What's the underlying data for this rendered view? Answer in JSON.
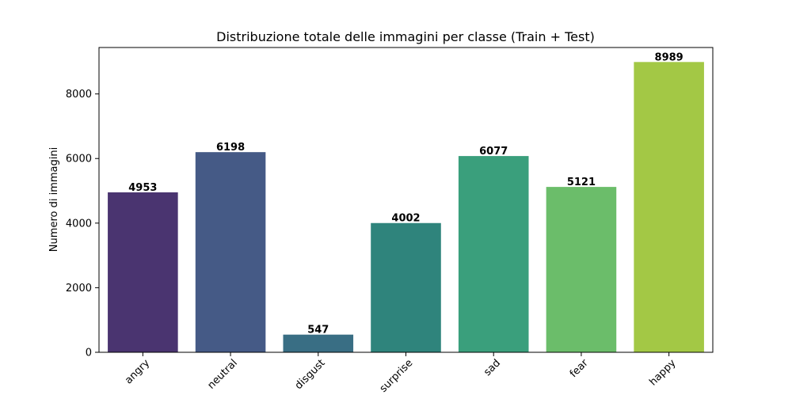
{
  "chart_data": {
    "type": "bar",
    "title": "Distribuzione totale delle immagini per classe (Train + Test)",
    "xlabel": "",
    "ylabel": "Numero di immagini",
    "categories": [
      "angry",
      "neutral",
      "disgust",
      "surprise",
      "sad",
      "fear",
      "happy"
    ],
    "values": [
      4953,
      6198,
      547,
      4002,
      6077,
      5121,
      8989
    ],
    "value_labels": [
      "4953",
      "6198",
      "547",
      "4002",
      "6077",
      "5121",
      "8989"
    ],
    "colors": [
      "#4a3470",
      "#455a86",
      "#396e84",
      "#2f847c",
      "#3a9f7c",
      "#6bbd6a",
      "#a3c845"
    ],
    "yticks": [
      0,
      2000,
      4000,
      6000,
      8000
    ],
    "ytick_labels": [
      "0",
      "2000",
      "4000",
      "6000",
      "8000"
    ],
    "ylim": [
      0,
      9438
    ],
    "x_tick_rotation_deg": 45,
    "grid": false,
    "legend": "none"
  }
}
